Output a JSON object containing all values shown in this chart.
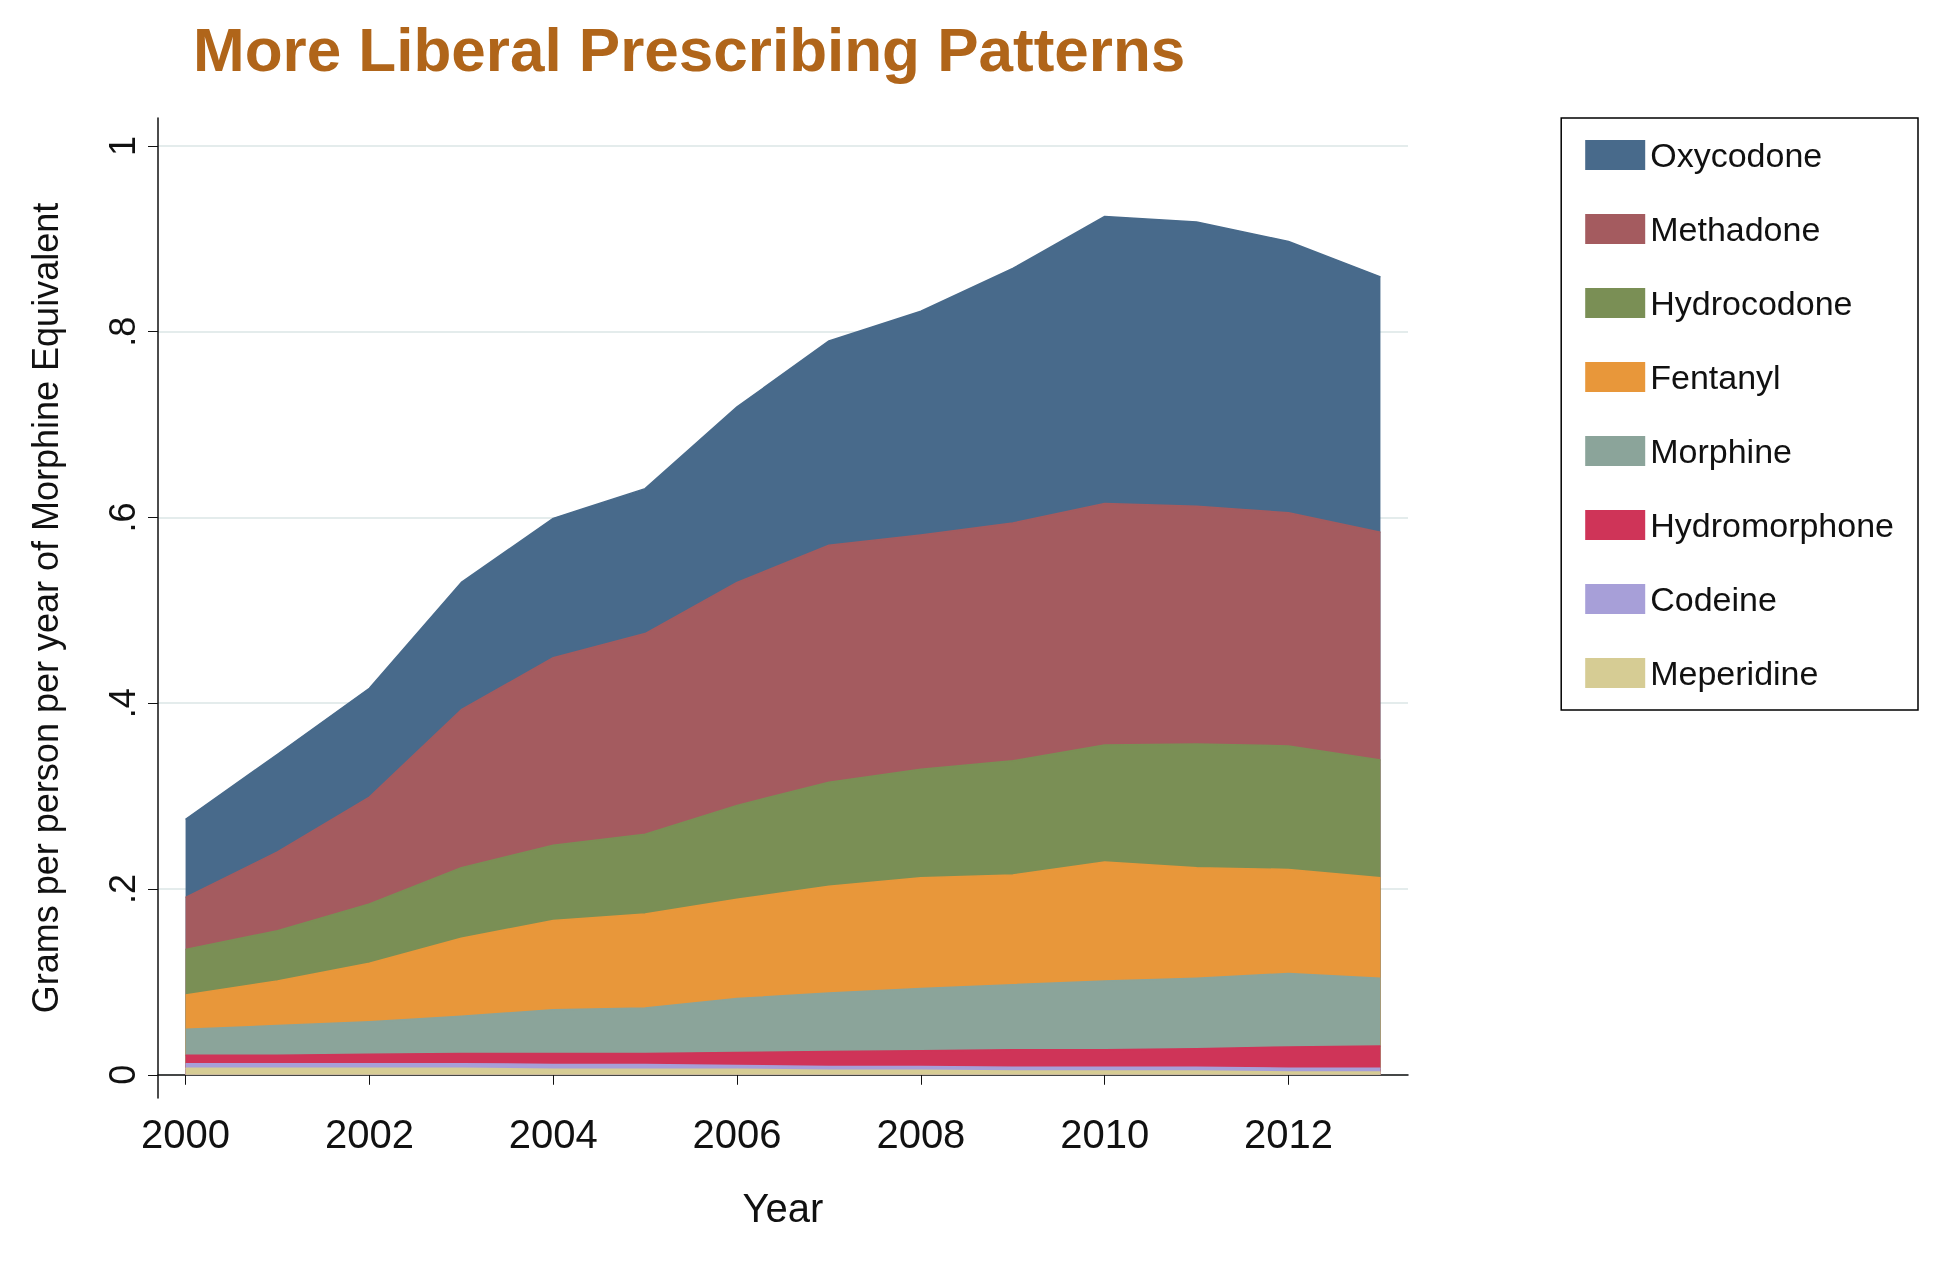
{
  "chart_data": {
    "type": "area",
    "title": "More Liberal Prescribing Patterns",
    "xlabel": "Year",
    "ylabel": "Grams per person per year of Morphine Equivalent",
    "stacked": true,
    "x": [
      2000,
      2001,
      2002,
      2003,
      2004,
      2005,
      2006,
      2007,
      2008,
      2009,
      2010,
      2011,
      2012,
      2013
    ],
    "series": [
      {
        "name": "Meperidine",
        "color": "#d6cc94",
        "values": [
          0.007,
          0.007,
          0.007,
          0.007,
          0.006,
          0.006,
          0.006,
          0.005,
          0.005,
          0.004,
          0.004,
          0.004,
          0.003,
          0.003
        ]
      },
      {
        "name": "Codeine",
        "color": "#a79fd8",
        "values": [
          0.005,
          0.005,
          0.005,
          0.005,
          0.005,
          0.005,
          0.004,
          0.004,
          0.004,
          0.004,
          0.004,
          0.004,
          0.004,
          0.004
        ]
      },
      {
        "name": "Hydromorphone",
        "color": "#cf3458",
        "values": [
          0.009,
          0.009,
          0.01,
          0.011,
          0.012,
          0.012,
          0.014,
          0.016,
          0.017,
          0.019,
          0.019,
          0.02,
          0.023,
          0.024
        ]
      },
      {
        "name": "Morphine",
        "color": "#8ba49a",
        "values": [
          0.028,
          0.032,
          0.035,
          0.04,
          0.047,
          0.049,
          0.058,
          0.063,
          0.067,
          0.07,
          0.074,
          0.076,
          0.079,
          0.073
        ]
      },
      {
        "name": "Fentanyl",
        "color": "#e8973a",
        "values": [
          0.037,
          0.048,
          0.063,
          0.084,
          0.096,
          0.101,
          0.107,
          0.115,
          0.119,
          0.118,
          0.128,
          0.119,
          0.112,
          0.108
        ]
      },
      {
        "name": "Hydrocodone",
        "color": "#7a8f55",
        "values": [
          0.049,
          0.054,
          0.064,
          0.076,
          0.081,
          0.086,
          0.101,
          0.112,
          0.117,
          0.123,
          0.126,
          0.133,
          0.133,
          0.127
        ]
      },
      {
        "name": "Methadone",
        "color": "#a45b5f",
        "values": [
          0.056,
          0.085,
          0.115,
          0.17,
          0.202,
          0.216,
          0.24,
          0.255,
          0.252,
          0.256,
          0.26,
          0.256,
          0.251,
          0.245
        ]
      },
      {
        "name": "Oxycodone",
        "color": "#486a8b",
        "values": [
          0.084,
          0.105,
          0.117,
          0.137,
          0.15,
          0.156,
          0.189,
          0.22,
          0.241,
          0.274,
          0.309,
          0.306,
          0.292,
          0.275
        ]
      }
    ],
    "xlim": [
      1999.7,
      2013.3
    ],
    "xticks": [
      2000,
      2002,
      2004,
      2006,
      2008,
      2010,
      2012
    ],
    "ylim": [
      -0.025,
      1.03
    ],
    "yticks": [
      0,
      {
        "value": 0.2,
        "label": ".2"
      },
      {
        "value": 0.4,
        "label": ".4"
      },
      {
        "value": 0.6,
        "label": ".6"
      },
      {
        "value": 0.8,
        "label": ".8"
      },
      1
    ],
    "grid": "y",
    "legend": "right"
  }
}
